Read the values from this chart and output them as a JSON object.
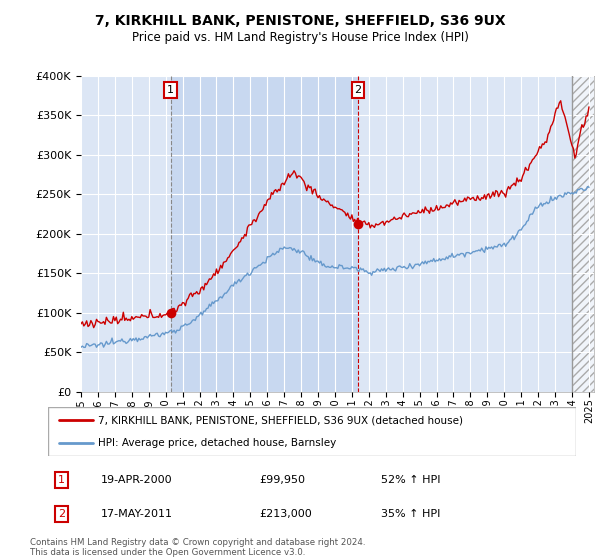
{
  "title": "7, KIRKHILL BANK, PENISTONE, SHEFFIELD, S36 9UX",
  "subtitle": "Price paid vs. HM Land Registry's House Price Index (HPI)",
  "ylim": [
    0,
    400000
  ],
  "yticks": [
    0,
    50000,
    100000,
    150000,
    200000,
    250000,
    300000,
    350000,
    400000
  ],
  "ytick_labels": [
    "£0",
    "£50K",
    "£100K",
    "£150K",
    "£200K",
    "£250K",
    "£300K",
    "£350K",
    "£400K"
  ],
  "xlim_start": 1995.0,
  "xlim_end": 2025.3,
  "sale1_x": 2000.29,
  "sale1_y": 99950,
  "sale1_date": "19-APR-2000",
  "sale1_price": "£99,950",
  "sale1_hpi": "52% ↑ HPI",
  "sale2_x": 2011.37,
  "sale2_y": 213000,
  "sale2_date": "17-MAY-2011",
  "sale2_price": "£213,000",
  "sale2_hpi": "35% ↑ HPI",
  "line_color_property": "#cc0000",
  "line_color_hpi": "#6699cc",
  "bg_color_main": "#dce6f5",
  "bg_color_between": "#c8d8f0",
  "grid_color": "#ffffff",
  "legend1_label": "7, KIRKHILL BANK, PENISTONE, SHEFFIELD, S36 9UX (detached house)",
  "legend2_label": "HPI: Average price, detached house, Barnsley",
  "footer": "Contains HM Land Registry data © Crown copyright and database right 2024.\nThis data is licensed under the Open Government Licence v3.0.",
  "xticks": [
    1995,
    1996,
    1997,
    1998,
    1999,
    2000,
    2001,
    2002,
    2003,
    2004,
    2005,
    2006,
    2007,
    2008,
    2009,
    2010,
    2011,
    2012,
    2013,
    2014,
    2015,
    2016,
    2017,
    2018,
    2019,
    2020,
    2021,
    2022,
    2023,
    2024,
    2025
  ],
  "hatch_start": 2024.0
}
